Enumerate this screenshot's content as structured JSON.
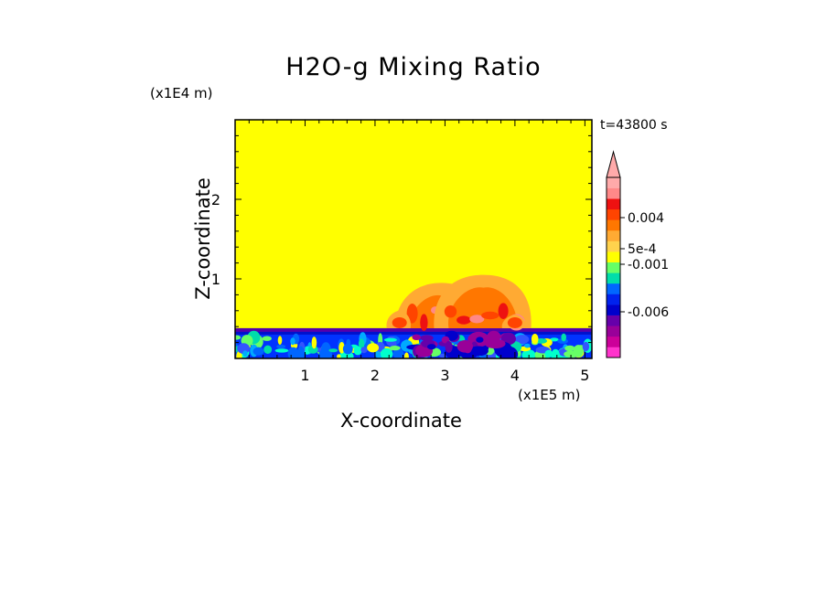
{
  "chart_data": {
    "type": "heatmap",
    "title": "H2O-g Mixing Ratio",
    "xlabel": "X-coordinate",
    "ylabel": "Z-coordinate",
    "x_scale_label": "(x1E5 m)",
    "y_scale_label": "(x1E4 m)",
    "time_label": "t=43800 s",
    "xlim": [
      0,
      5.1
    ],
    "ylim": [
      0,
      3.0
    ],
    "x_ticks": [
      "1",
      "2",
      "3",
      "4",
      "5"
    ],
    "y_ticks": [
      "1",
      "2"
    ],
    "colorbar": {
      "labels": [
        {
          "text": "0.004",
          "value": 0.004
        },
        {
          "text": "5e-4",
          "value": 0.0005
        },
        {
          "text": "-0.001",
          "value": -0.001
        },
        {
          "text": "-0.006",
          "value": -0.006
        }
      ],
      "colors": [
        "#ff33cc",
        "#cc0099",
        "#990099",
        "#6600aa",
        "#0000cc",
        "#0022ee",
        "#0066ff",
        "#00ddaa",
        "#66ff66",
        "#ffff00",
        "#ffd24d",
        "#ffaa33",
        "#ff7700",
        "#ff4400",
        "#ee1111",
        "#ff8888",
        "#ffaaaa"
      ],
      "extend": "max"
    },
    "background_level_color": "#ffff00",
    "layers": [
      {
        "name": "lower layer",
        "z_range_x1E4m": [
          0,
          0.38
        ],
        "color": "#0033ff"
      },
      {
        "name": "upper layer",
        "z_range_x1E4m": [
          0.38,
          3.0
        ],
        "color": "#ffff00"
      }
    ],
    "plumes": [
      {
        "x_center": 2.95,
        "z_top": 0.95,
        "peak_color": "#ff7700"
      },
      {
        "x_center": 3.55,
        "z_top": 1.05,
        "peak_color": "#ff7700"
      }
    ]
  }
}
